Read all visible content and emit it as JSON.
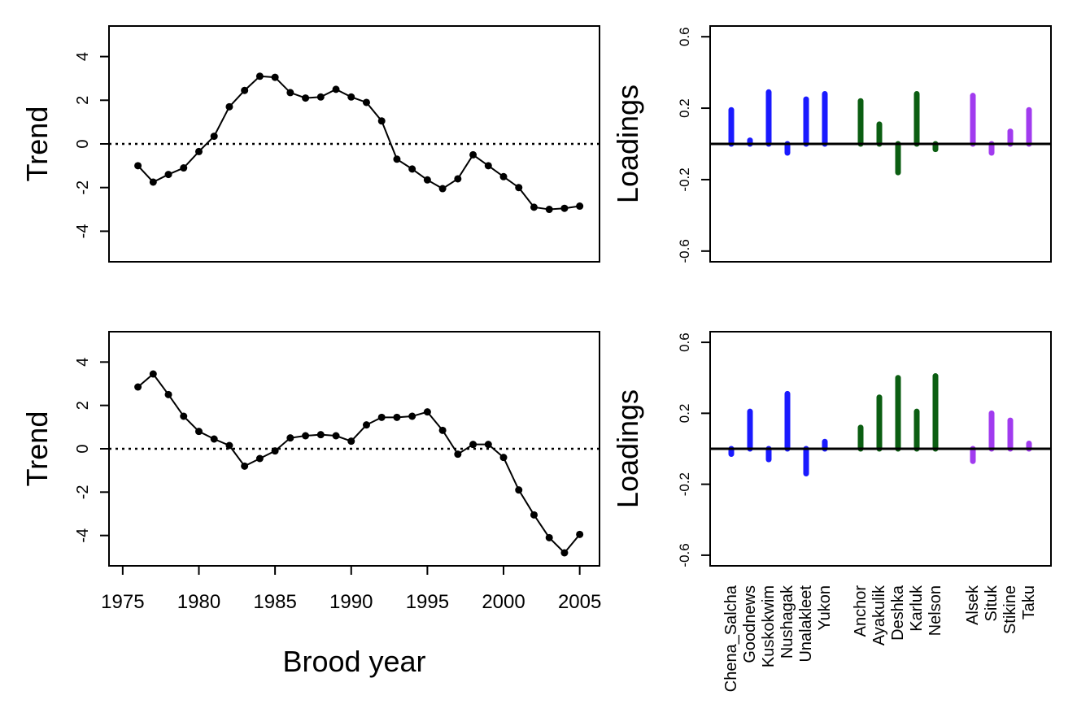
{
  "colors": {
    "line": "#000000",
    "blue": "#1a1aff",
    "green": "#0b5e12",
    "purple": "#a13bef"
  },
  "chart_data": [
    {
      "type": "line",
      "panel": "trend-1",
      "ylabel": "Trend",
      "xlabel": "",
      "ylim": [
        -5.4,
        5.4
      ],
      "yticks": [
        "-4",
        "-2",
        "0",
        "2",
        "4"
      ],
      "ytick_values": [
        -4,
        -2,
        0,
        2,
        4
      ],
      "xlim": [
        1974.1,
        2006.3
      ],
      "reference_line": 0,
      "x": [
        1976,
        1977,
        1978,
        1979,
        1980,
        1981,
        1982,
        1983,
        1984,
        1985,
        1986,
        1987,
        1988,
        1989,
        1990,
        1991,
        1992,
        1993,
        1994,
        1995,
        1996,
        1997,
        1998,
        1999,
        2000,
        2001,
        2002,
        2003,
        2004,
        2005
      ],
      "values": [
        -1.0,
        -1.75,
        -1.4,
        -1.1,
        -0.35,
        0.35,
        1.7,
        2.45,
        3.1,
        3.05,
        2.35,
        2.1,
        2.15,
        2.5,
        2.15,
        1.9,
        1.05,
        -0.7,
        -1.15,
        -1.65,
        -2.05,
        -1.6,
        -0.5,
        -1.0,
        -1.5,
        -2.0,
        -2.9,
        -3.0,
        -2.95,
        -2.85
      ]
    },
    {
      "type": "line",
      "panel": "trend-2",
      "ylabel": "Trend",
      "xlabel": "Brood year",
      "ylim": [
        -5.4,
        5.4
      ],
      "yticks": [
        "-4",
        "-2",
        "0",
        "2",
        "4"
      ],
      "ytick_values": [
        -4,
        -2,
        0,
        2,
        4
      ],
      "xlim": [
        1974.1,
        2006.3
      ],
      "xticks": [
        "1975",
        "1980",
        "1985",
        "1990",
        "1995",
        "2000",
        "2005"
      ],
      "xtick_values": [
        1975,
        1980,
        1985,
        1990,
        1995,
        2000,
        2005
      ],
      "reference_line": 0,
      "x": [
        1976,
        1977,
        1978,
        1979,
        1980,
        1981,
        1982,
        1983,
        1984,
        1985,
        1986,
        1987,
        1988,
        1989,
        1990,
        1991,
        1992,
        1993,
        1994,
        1995,
        1996,
        1997,
        1998,
        1999,
        2000,
        2001,
        2002,
        2003,
        2004,
        2005
      ],
      "values": [
        2.85,
        3.45,
        2.5,
        1.5,
        0.8,
        0.45,
        0.15,
        -0.8,
        -0.45,
        -0.1,
        0.5,
        0.6,
        0.65,
        0.6,
        0.35,
        1.1,
        1.45,
        1.45,
        1.5,
        1.7,
        0.85,
        -0.25,
        0.2,
        0.2,
        -0.4,
        -1.9,
        -3.05,
        -4.1,
        -4.8,
        -3.95
      ]
    },
    {
      "type": "bar",
      "panel": "loadings-1",
      "ylabel": "Loadings",
      "ylim": [
        -0.66,
        0.66
      ],
      "yticks": [
        "-0.6",
        "-0.2",
        "0.2",
        "0.6"
      ],
      "ytick_values": [
        -0.6,
        -0.2,
        0.2,
        0.6
      ],
      "reference_line": 0,
      "categories": [
        "Chena_Salcha",
        "Goodnews",
        "Kuskokwim",
        "Nushagak",
        "Unalakleet",
        "Yukon",
        "Anchor",
        "Ayakulik",
        "Deshka",
        "Karluk",
        "Nelson",
        "Alsek",
        "Situk",
        "Stikine",
        "Taku"
      ],
      "groups": [
        "blue",
        "blue",
        "blue",
        "blue",
        "blue",
        "blue",
        "green",
        "green",
        "green",
        "green",
        "green",
        "purple",
        "purple",
        "purple",
        "purple"
      ],
      "values": [
        0.19,
        0.02,
        0.29,
        -0.05,
        0.25,
        0.28,
        0.24,
        0.11,
        -0.16,
        0.28,
        -0.03,
        0.27,
        -0.05,
        0.07,
        0.19
      ]
    },
    {
      "type": "bar",
      "panel": "loadings-2",
      "ylabel": "Loadings",
      "ylim": [
        -0.66,
        0.66
      ],
      "yticks": [
        "-0.6",
        "-0.2",
        "0.2",
        "0.6"
      ],
      "ytick_values": [
        -0.6,
        -0.2,
        0.2,
        0.6
      ],
      "reference_line": 0,
      "categories": [
        "Chena_Salcha",
        "Goodnews",
        "Kuskokwim",
        "Nushagak",
        "Unalakleet",
        "Yukon",
        "Anchor",
        "Ayakulik",
        "Deshka",
        "Karluk",
        "Nelson",
        "Alsek",
        "Situk",
        "Stikine",
        "Taku"
      ],
      "groups": [
        "blue",
        "blue",
        "blue",
        "blue",
        "blue",
        "blue",
        "green",
        "green",
        "green",
        "green",
        "green",
        "purple",
        "purple",
        "purple",
        "purple"
      ],
      "values": [
        -0.03,
        0.21,
        -0.06,
        0.31,
        -0.14,
        0.04,
        0.12,
        0.29,
        0.4,
        0.21,
        0.41,
        -0.07,
        0.2,
        0.16,
        0.03
      ]
    }
  ]
}
